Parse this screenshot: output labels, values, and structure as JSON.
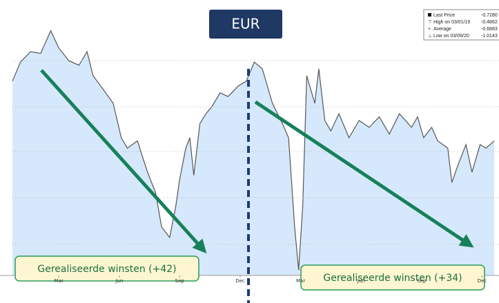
{
  "chart_data": {
    "type": "area",
    "title": "EUR",
    "legend": [
      {
        "label": "Last Price",
        "value": "-0.7280"
      },
      {
        "label": "High on 03/01/19",
        "value": "-0.4862"
      },
      {
        "label": "Average",
        "value": "-0.6883"
      },
      {
        "label": "Low on 03/09/20",
        "value": "-1.0143"
      }
    ],
    "annotations": [
      "Gerealiseerde winsten (+42)",
      "Gerealiseerde winsten (+34)"
    ],
    "x": [
      -0.3,
      0.1,
      0.6,
      1.1,
      1.6,
      2.0,
      2.5,
      3.0,
      3.4,
      3.7,
      4.2,
      4.7,
      5.1,
      5.4,
      5.9,
      6.4,
      6.8,
      7.1,
      7.5,
      7.8,
      8.0,
      8.3,
      8.5,
      8.7,
      9.0,
      9.3,
      9.6,
      10.0,
      10.4,
      10.9,
      11.3,
      11.7,
      12.1,
      12.6,
      13.1,
      13.4,
      13.7,
      13.9,
      14.1,
      14.3,
      14.7,
      14.9,
      15.2,
      15.5,
      15.9,
      16.4,
      16.9,
      17.4,
      17.9,
      18.4,
      18.9,
      19.5,
      19.8,
      20.1,
      20.5,
      20.8,
      21.3,
      21.5,
      21.8,
      22.2,
      22.5,
      22.9,
      23.2,
      23.6
    ],
    "series": [
      {
        "name": "Last Price",
        "color": "#555555",
        "fill": "#d6e8fb",
        "values": [
          -0.597,
          -0.555,
          -0.532,
          -0.536,
          -0.486,
          -0.524,
          -0.552,
          -0.562,
          -0.532,
          -0.585,
          -0.615,
          -0.646,
          -0.722,
          -0.745,
          -0.729,
          -0.798,
          -0.843,
          -0.919,
          -0.942,
          -0.874,
          -0.813,
          -0.745,
          -0.722,
          -0.805,
          -0.691,
          -0.669,
          -0.653,
          -0.623,
          -0.631,
          -0.608,
          -0.597,
          -0.555,
          -0.57,
          -0.646,
          -0.691,
          -0.722,
          -0.919,
          -1.014,
          -0.874,
          -0.585,
          -0.646,
          -0.57,
          -0.684,
          -0.707,
          -0.669,
          -0.722,
          -0.684,
          -0.699,
          -0.676,
          -0.714,
          -0.669,
          -0.699,
          -0.676,
          -0.722,
          -0.699,
          -0.729,
          -0.745,
          -0.821,
          -0.783,
          -0.737,
          -0.798,
          -0.737,
          -0.745,
          -0.729
        ]
      }
    ],
    "xlim": [
      -0.3,
      23.6
    ],
    "ylim": [
      -1.026,
      -0.418
    ],
    "xticks": [
      {
        "value": 2,
        "label": "Mar"
      },
      {
        "value": 5,
        "label": "Jun"
      },
      {
        "value": 8,
        "label": "Sep"
      },
      {
        "value": 11,
        "label": "Dec"
      },
      {
        "value": 14,
        "label": "Mar"
      },
      {
        "value": 17,
        "label": "Jun"
      },
      {
        "value": 20,
        "label": "Sep"
      },
      {
        "value": 23,
        "label": "Dec"
      }
    ]
  }
}
